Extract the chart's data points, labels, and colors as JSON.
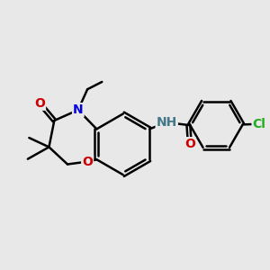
{
  "background_color": "#e8e8e8",
  "bond_color": "#000000",
  "bond_width": 1.8,
  "atom_colors": {
    "O": "#cc0000",
    "N": "#0000dd",
    "Cl": "#22aa22",
    "NH": "#447788",
    "H": "#447788",
    "C": "#000000"
  },
  "font_size_atom": 10,
  "font_size_small": 8
}
